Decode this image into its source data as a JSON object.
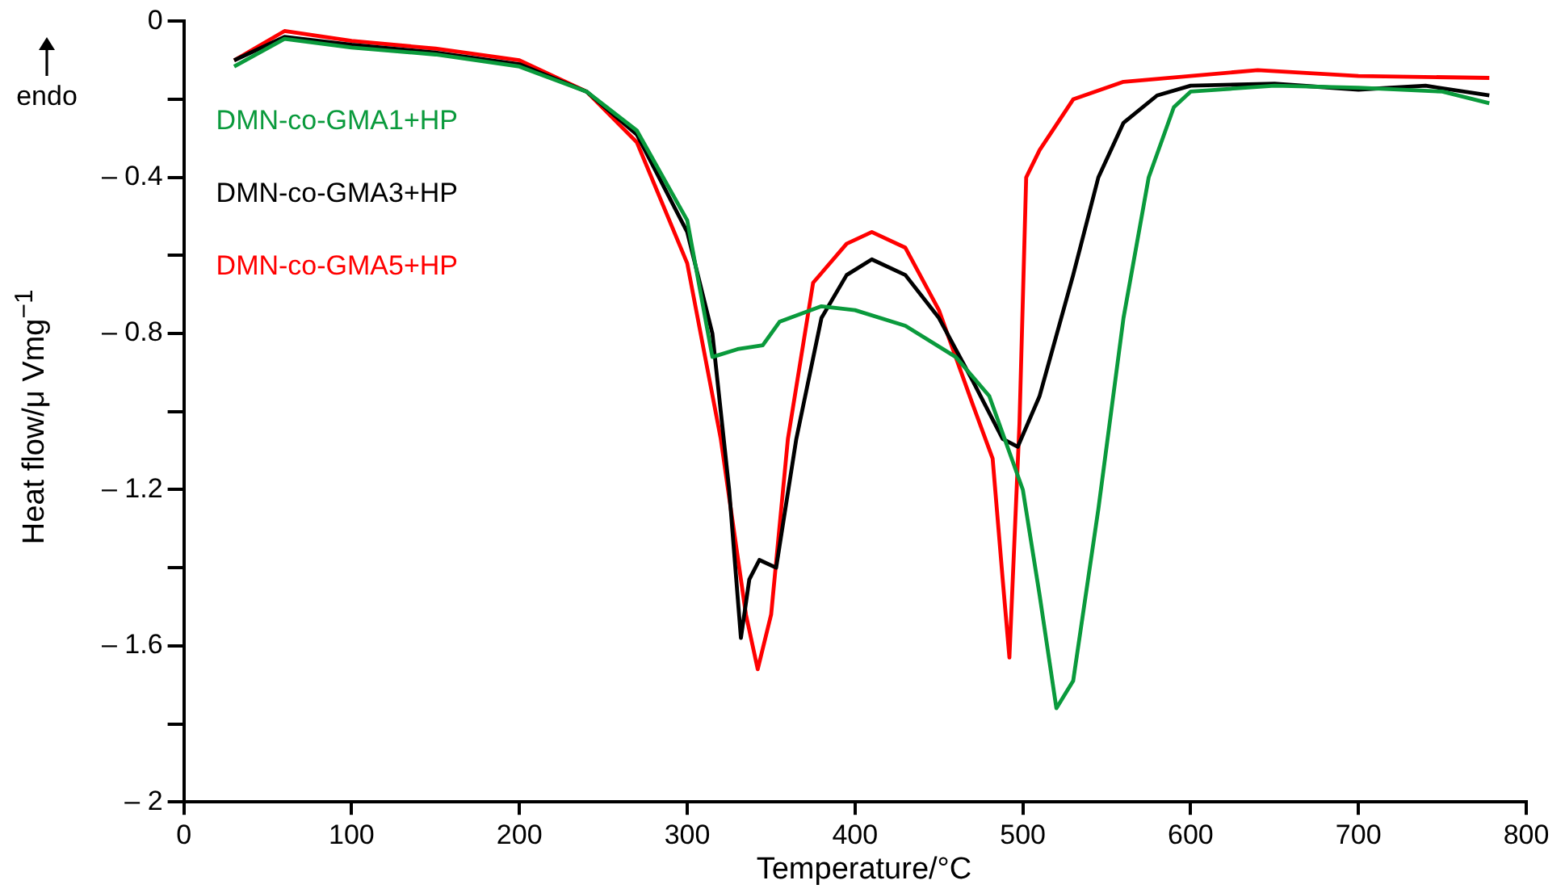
{
  "chart_data": {
    "type": "line",
    "xlabel": "Temperature/°C",
    "ylabel": "Heat flow/μ Vmg$^{−1}$",
    "annotations": [
      "endo"
    ],
    "legend": "top left",
    "grid": false,
    "marker": "none",
    "line_style": "solid",
    "xlim": [
      0,
      800
    ],
    "xticks": [
      0,
      100,
      200,
      300,
      400,
      500,
      600,
      700,
      800
    ],
    "ylim": [
      -2,
      0
    ],
    "yticks": [
      0,
      {
        "value": -0.2,
        "label": null
      },
      {
        "value": -0.4,
        "label": "– 0.4"
      },
      {
        "value": -0.6,
        "label": null
      },
      {
        "value": -0.8,
        "label": "– 0.8"
      },
      {
        "value": -1,
        "label": null
      },
      {
        "value": -1.2,
        "label": "– 1.2"
      },
      {
        "value": -1.4,
        "label": null
      },
      {
        "value": -1.6,
        "label": "– 1.6"
      },
      {
        "value": -1.8,
        "label": null
      },
      {
        "value": -2,
        "label": "– 2"
      }
    ],
    "series": [
      {
        "name": "DMN-co-GMA1+HP",
        "color": "#0a9a3c",
        "x": [
          30,
          60,
          100,
          150,
          200,
          240,
          270,
          300,
          315,
          330,
          345,
          355,
          380,
          400,
          430,
          460,
          480,
          500,
          510,
          520,
          530,
          545,
          560,
          575,
          590,
          600,
          650,
          700,
          750,
          778
        ],
        "values": [
          -0.116,
          -0.045,
          -0.067,
          -0.085,
          -0.116,
          -0.18,
          -0.28,
          -0.51,
          -0.86,
          -0.84,
          -0.83,
          -0.77,
          -0.73,
          -0.74,
          -0.78,
          -0.86,
          -0.96,
          -1.2,
          -1.47,
          -1.76,
          -1.69,
          -1.25,
          -0.76,
          -0.4,
          -0.22,
          -0.18,
          -0.165,
          -0.17,
          -0.18,
          -0.21
        ]
      },
      {
        "name": "DMN-co-GMA3+HP",
        "color": "#000000",
        "x": [
          30,
          60,
          100,
          150,
          200,
          240,
          270,
          300,
          315,
          325,
          332,
          337,
          343,
          353,
          365,
          380,
          395,
          410,
          430,
          450,
          470,
          488,
          497,
          510,
          530,
          545,
          560,
          580,
          600,
          650,
          700,
          740,
          778
        ],
        "values": [
          -0.1,
          -0.04,
          -0.06,
          -0.08,
          -0.11,
          -0.18,
          -0.29,
          -0.54,
          -0.8,
          -1.2,
          -1.58,
          -1.43,
          -1.38,
          -1.4,
          -1.07,
          -0.76,
          -0.65,
          -0.61,
          -0.65,
          -0.76,
          -0.92,
          -1.07,
          -1.09,
          -0.96,
          -0.65,
          -0.4,
          -0.26,
          -0.19,
          -0.165,
          -0.16,
          -0.175,
          -0.165,
          -0.19
        ]
      },
      {
        "name": "DMN-co-GMA5+HP",
        "color": "#ff0000",
        "x": [
          30,
          60,
          100,
          150,
          200,
          240,
          270,
          300,
          320,
          335,
          342,
          350,
          360,
          375,
          395,
          410,
          430,
          450,
          470,
          482,
          488,
          492,
          498,
          502,
          510,
          530,
          560,
          640,
          700,
          778
        ],
        "values": [
          -0.1,
          -0.025,
          -0.05,
          -0.07,
          -0.1,
          -0.18,
          -0.31,
          -0.62,
          -1.07,
          -1.52,
          -1.66,
          -1.52,
          -1.07,
          -0.67,
          -0.57,
          -0.54,
          -0.58,
          -0.74,
          -0.98,
          -1.12,
          -1.43,
          -1.63,
          -1.03,
          -0.4,
          -0.33,
          -0.2,
          -0.155,
          -0.125,
          -0.14,
          -0.145
        ]
      }
    ]
  }
}
